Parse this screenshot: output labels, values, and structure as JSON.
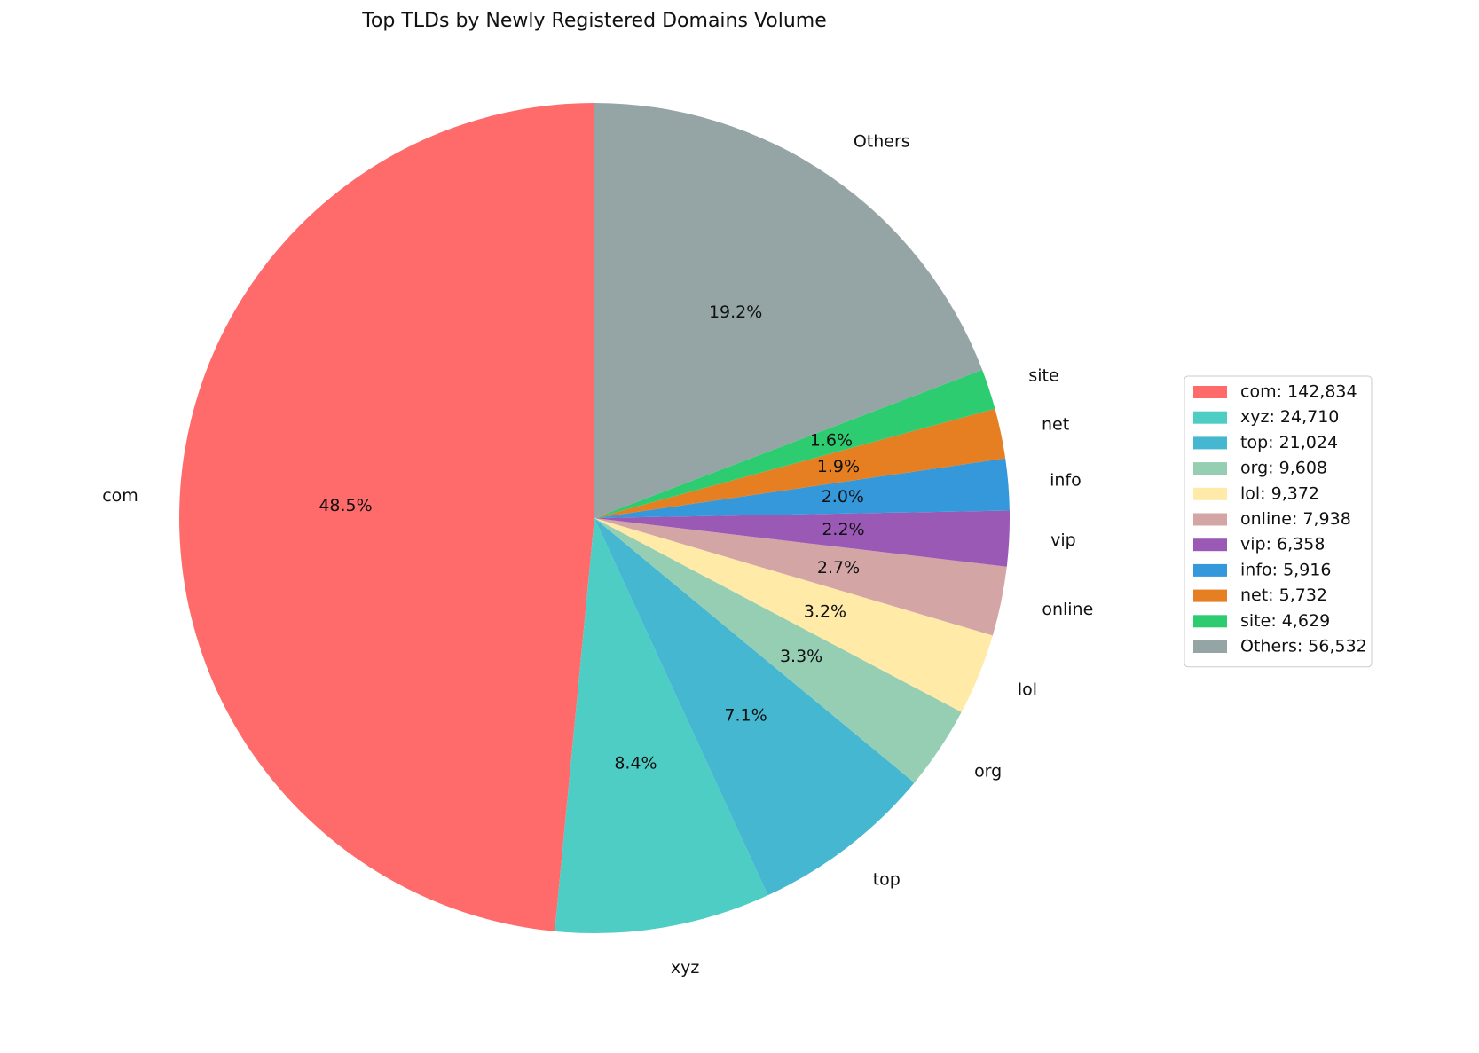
{
  "chart_data": {
    "type": "pie",
    "title": "Top TLDs by Newly Registered Domains Volume",
    "categories": [
      "com",
      "xyz",
      "top",
      "org",
      "lol",
      "online",
      "vip",
      "info",
      "net",
      "site",
      "Others"
    ],
    "values": [
      142834,
      24710,
      21024,
      9608,
      9372,
      7938,
      6358,
      5916,
      5732,
      4629,
      56532
    ],
    "percents": [
      48.5,
      8.4,
      7.1,
      3.3,
      3.2,
      2.7,
      2.2,
      2.0,
      1.9,
      1.6,
      19.2
    ],
    "percent_labels": [
      "48.5%",
      "8.4%",
      "7.1%",
      "3.3%",
      "3.2%",
      "2.7%",
      "2.2%",
      "2.0%",
      "1.9%",
      "1.6%",
      "19.2%"
    ],
    "legend_labels": [
      "com: 142,834",
      "xyz: 24,710",
      "top: 21,024",
      "org: 9,608",
      "lol: 9,372",
      "online: 7,938",
      "vip: 6,358",
      "info: 5,916",
      "net: 5,732",
      "site: 4,629",
      "Others: 56,532"
    ],
    "colors": [
      "#ff6b6b",
      "#4ecdc4",
      "#45b7d1",
      "#96ceb4",
      "#ffeaa7",
      "#d4a5a5",
      "#9b59b6",
      "#3498db",
      "#e67e22",
      "#2ecc71",
      "#95a5a6"
    ],
    "legend": "right"
  }
}
